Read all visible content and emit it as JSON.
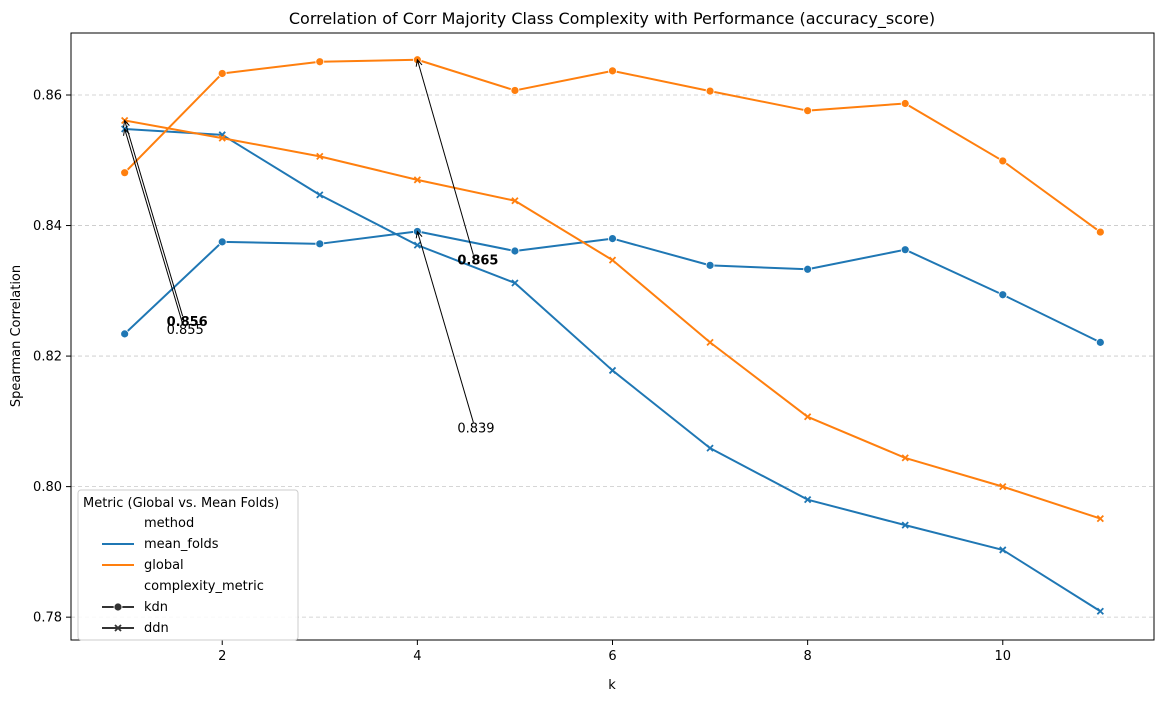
{
  "chart_data": {
    "type": "line",
    "title": "Correlation of Corr Majority Class Complexity with Performance (accuracy_score)",
    "xlabel": "k",
    "ylabel": "Spearman Correlation",
    "x": [
      1,
      2,
      3,
      4,
      5,
      6,
      7,
      8,
      9,
      10,
      11
    ],
    "xlim": [
      0.45,
      11.55
    ],
    "ylim": [
      0.7765,
      0.8695
    ],
    "x_ticks": [
      2,
      4,
      6,
      8,
      10
    ],
    "y_ticks": [
      0.78,
      0.8,
      0.82,
      0.84,
      0.86
    ],
    "y_tick_labels": [
      "0.78",
      "0.80",
      "0.82",
      "0.84",
      "0.86"
    ],
    "grid": "y, dashed",
    "series": [
      {
        "method": "mean_folds",
        "complexity_metric": "kdn",
        "marker": "circle",
        "color": "#1f77b4",
        "values": [
          0.8234,
          0.8375,
          0.8372,
          0.8391,
          0.8361,
          0.838,
          0.8339,
          0.8333,
          0.8363,
          0.8294,
          0.8221
        ]
      },
      {
        "method": "mean_folds",
        "complexity_metric": "ddn",
        "marker": "x",
        "color": "#1f77b4",
        "values": [
          0.8548,
          0.8539,
          0.8447,
          0.837,
          0.8312,
          0.8178,
          0.8059,
          0.798,
          0.7941,
          0.7903,
          0.7809
        ]
      },
      {
        "method": "global",
        "complexity_metric": "kdn",
        "marker": "circle",
        "color": "#ff7f0e",
        "values": [
          0.8481,
          0.8633,
          0.8651,
          0.8654,
          0.8607,
          0.8637,
          0.8606,
          0.8576,
          0.8587,
          0.8499,
          0.839
        ]
      },
      {
        "method": "global",
        "complexity_metric": "ddn",
        "marker": "x",
        "color": "#ff7f0e",
        "values": [
          0.8561,
          0.8534,
          0.8506,
          0.847,
          0.8438,
          0.8347,
          0.8221,
          0.8107,
          0.8044,
          0.8,
          0.7951
        ]
      }
    ],
    "annotations": [
      {
        "text": "0.856",
        "bold": true,
        "point": [
          1,
          0.8561
        ],
        "text_at": [
          1.43,
          0.8246
        ]
      },
      {
        "text": "0.855",
        "bold": false,
        "point": [
          1,
          0.8548
        ],
        "text_at": [
          1.43,
          0.8234
        ]
      },
      {
        "text": "0.865",
        "bold": true,
        "point": [
          4,
          0.8654
        ],
        "text_at": [
          4.41,
          0.834
        ]
      },
      {
        "text": "0.839",
        "bold": false,
        "point": [
          4,
          0.8391
        ],
        "text_at": [
          4.41,
          0.8083
        ]
      }
    ],
    "legend": {
      "title": "Metric (Global vs. Mean Folds)",
      "position": "lower-left",
      "entries": [
        {
          "label": "method",
          "kind": "header"
        },
        {
          "label": "mean_folds",
          "kind": "line",
          "color": "#1f77b4"
        },
        {
          "label": "global",
          "kind": "line",
          "color": "#ff7f0e"
        },
        {
          "label": "complexity_metric",
          "kind": "header"
        },
        {
          "label": "kdn",
          "kind": "marker",
          "marker": "circle",
          "color": "#333333"
        },
        {
          "label": "ddn",
          "kind": "marker",
          "marker": "x",
          "color": "#333333"
        }
      ]
    }
  }
}
